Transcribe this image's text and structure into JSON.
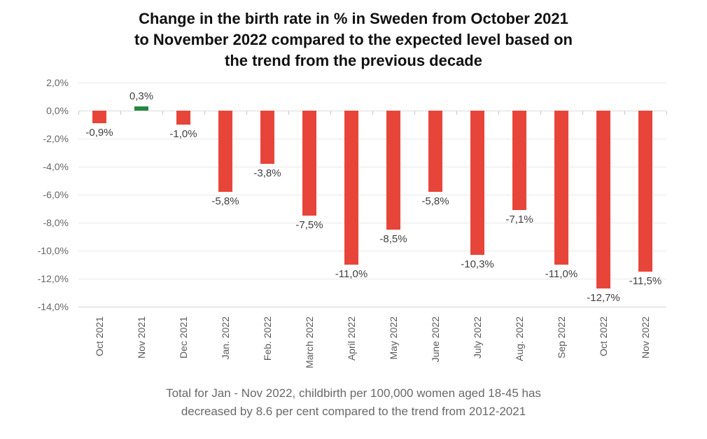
{
  "title": {
    "lines": [
      "Change in the birth rate in % in Sweden from October 2021",
      "to November 2022 compared to the expected level based on",
      "the trend from the previous decade"
    ]
  },
  "footer": {
    "lines": [
      "Total for Jan - Nov 2022, childbirth per 100,000 women aged 18-45 has",
      "decreased by 8.6 per cent compared to the trend from 2012-2021"
    ]
  },
  "chart_data": {
    "type": "bar",
    "title": "Change in the birth rate in % in Sweden from October 2021 to November 2022 compared to the expected level based on the trend from the previous decade",
    "categories": [
      "Oct 2021",
      "Nov 2021",
      "Dec 2021",
      "Jan. 2022",
      "Feb. 2022",
      "March 2022",
      "April 2022",
      "May 2022",
      "June 2022",
      "July 2022",
      "Aug. 2022",
      "Sep 2022",
      "Oct 2022",
      "Nov 2022"
    ],
    "values": [
      -0.9,
      0.3,
      -1.0,
      -5.8,
      -3.8,
      -7.5,
      -11.0,
      -8.5,
      -5.8,
      -10.3,
      -7.1,
      -11.0,
      -12.7,
      -11.5
    ],
    "value_labels": [
      "-0,9%",
      "0,3%",
      "-1,0%",
      "-5,8%",
      "-3,8%",
      "-7,5%",
      "-11,0%",
      "-8,5%",
      "-5,8%",
      "-10,3%",
      "-7,1%",
      "-11,0%",
      "-12,7%",
      "-11,5%"
    ],
    "xlabel": "",
    "ylabel": "",
    "ylim": [
      -14,
      2
    ],
    "y_tick_step": 2,
    "y_tick_labels": [
      "2,0%",
      "0,0%",
      "-2,0%",
      "-4,0%",
      "-6,0%",
      "-8,0%",
      "-10,0%",
      "-12,0%",
      "-14,0%"
    ],
    "grid": true,
    "legend": "none",
    "x_label_rotation": -90,
    "colors": {
      "negative": "#e8453a",
      "positive": "#268742"
    }
  }
}
